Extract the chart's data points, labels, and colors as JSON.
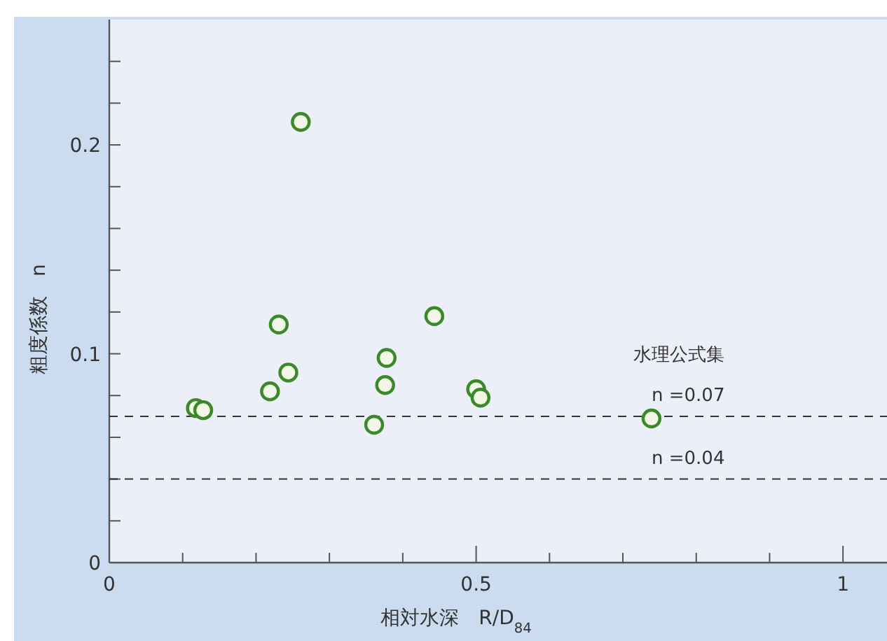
{
  "chart_data": {
    "type": "scatter",
    "xlabel": "相対水深　R/D$_{84}$",
    "ylabel": "粗度係数　n",
    "x": [
      0.261,
      0.231,
      0.443,
      0.118,
      0.128,
      0.219,
      0.244,
      0.378,
      0.376,
      0.361,
      0.5,
      0.506,
      0.739
    ],
    "series": [
      {
        "color": "#3a8a2a",
        "values": [
          0.211,
          0.114,
          0.118,
          0.074,
          0.073,
          0.082,
          0.091,
          0.098,
          0.085,
          0.066,
          0.083,
          0.079,
          0.069
        ]
      }
    ],
    "marker": "circle",
    "xlim": [
      0,
      1.06
    ],
    "ylim": [
      0,
      0.26
    ],
    "xticks": [
      0,
      {
        "value": 0.1,
        "label": null
      },
      {
        "value": 0.2,
        "label": null
      },
      {
        "value": 0.3,
        "label": null
      },
      {
        "value": 0.4,
        "label": null
      },
      0.5,
      {
        "value": 0.6,
        "label": null
      },
      {
        "value": 0.7,
        "label": null
      },
      {
        "value": 0.8,
        "label": null
      },
      {
        "value": 0.9,
        "label": null
      },
      1
    ],
    "yticks": [
      0,
      {
        "value": 0.02,
        "label": null
      },
      {
        "value": 0.04,
        "label": null
      },
      {
        "value": 0.06,
        "label": null
      },
      {
        "value": 0.08,
        "label": null
      },
      0.1,
      {
        "value": 0.12,
        "label": null
      },
      {
        "value": 0.14,
        "label": null
      },
      {
        "value": 0.16,
        "label": null
      },
      {
        "value": 0.18,
        "label": null
      },
      0.2,
      {
        "value": 0.22,
        "label": null
      },
      {
        "value": 0.24,
        "label": null
      }
    ],
    "ref_lines": [
      {
        "axis": "y",
        "value": 0.07,
        "label": "n =0.07",
        "line_style": "dashed",
        "color": "#333333"
      },
      {
        "axis": "y",
        "value": 0.04,
        "label": "n =0.04",
        "line_style": "dashed",
        "color": "#333333"
      }
    ],
    "annotations": [
      "水理公式集"
    ],
    "grid": false
  }
}
